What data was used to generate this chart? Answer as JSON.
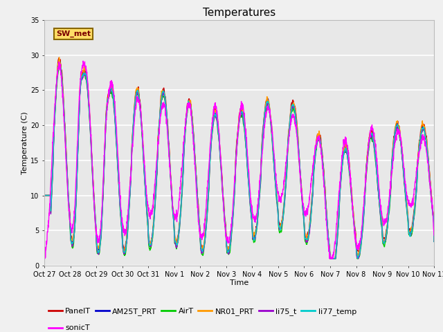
{
  "title": "Temperatures",
  "xlabel": "Time",
  "ylabel": "Temperature (C)",
  "ylim": [
    0,
    35
  ],
  "yticks": [
    0,
    5,
    10,
    15,
    20,
    25,
    30,
    35
  ],
  "date_labels": [
    "Oct 27",
    "Oct 28",
    "Oct 29",
    "Oct 30",
    "Oct 31",
    "Nov 1",
    "Nov 2",
    "Nov 3",
    "Nov 4",
    "Nov 5",
    "Nov 6",
    "Nov 7",
    "Nov 8",
    "Nov 9",
    "Nov 10",
    "Nov 11"
  ],
  "n_days": 15,
  "series_names": [
    "PanelT",
    "AM25T_PRT",
    "AirT",
    "NR01_PRT",
    "li75_t",
    "li77_temp",
    "sonicT"
  ],
  "series_colors": [
    "#cc0000",
    "#0000cc",
    "#00cc00",
    "#ff9900",
    "#9900cc",
    "#00cccc",
    "#ff00ff"
  ],
  "series_lw": [
    1.0,
    1.0,
    1.0,
    1.0,
    1.0,
    1.0,
    1.0
  ],
  "annotation_text": "SW_met",
  "plot_bg_color": "#e8e8e8",
  "fig_bg_color": "#f0f0f0",
  "grid_color": "#ffffff",
  "title_fontsize": 11,
  "legend_fontsize": 8,
  "tick_fontsize": 7,
  "ylabel_fontsize": 8,
  "xlabel_fontsize": 8
}
